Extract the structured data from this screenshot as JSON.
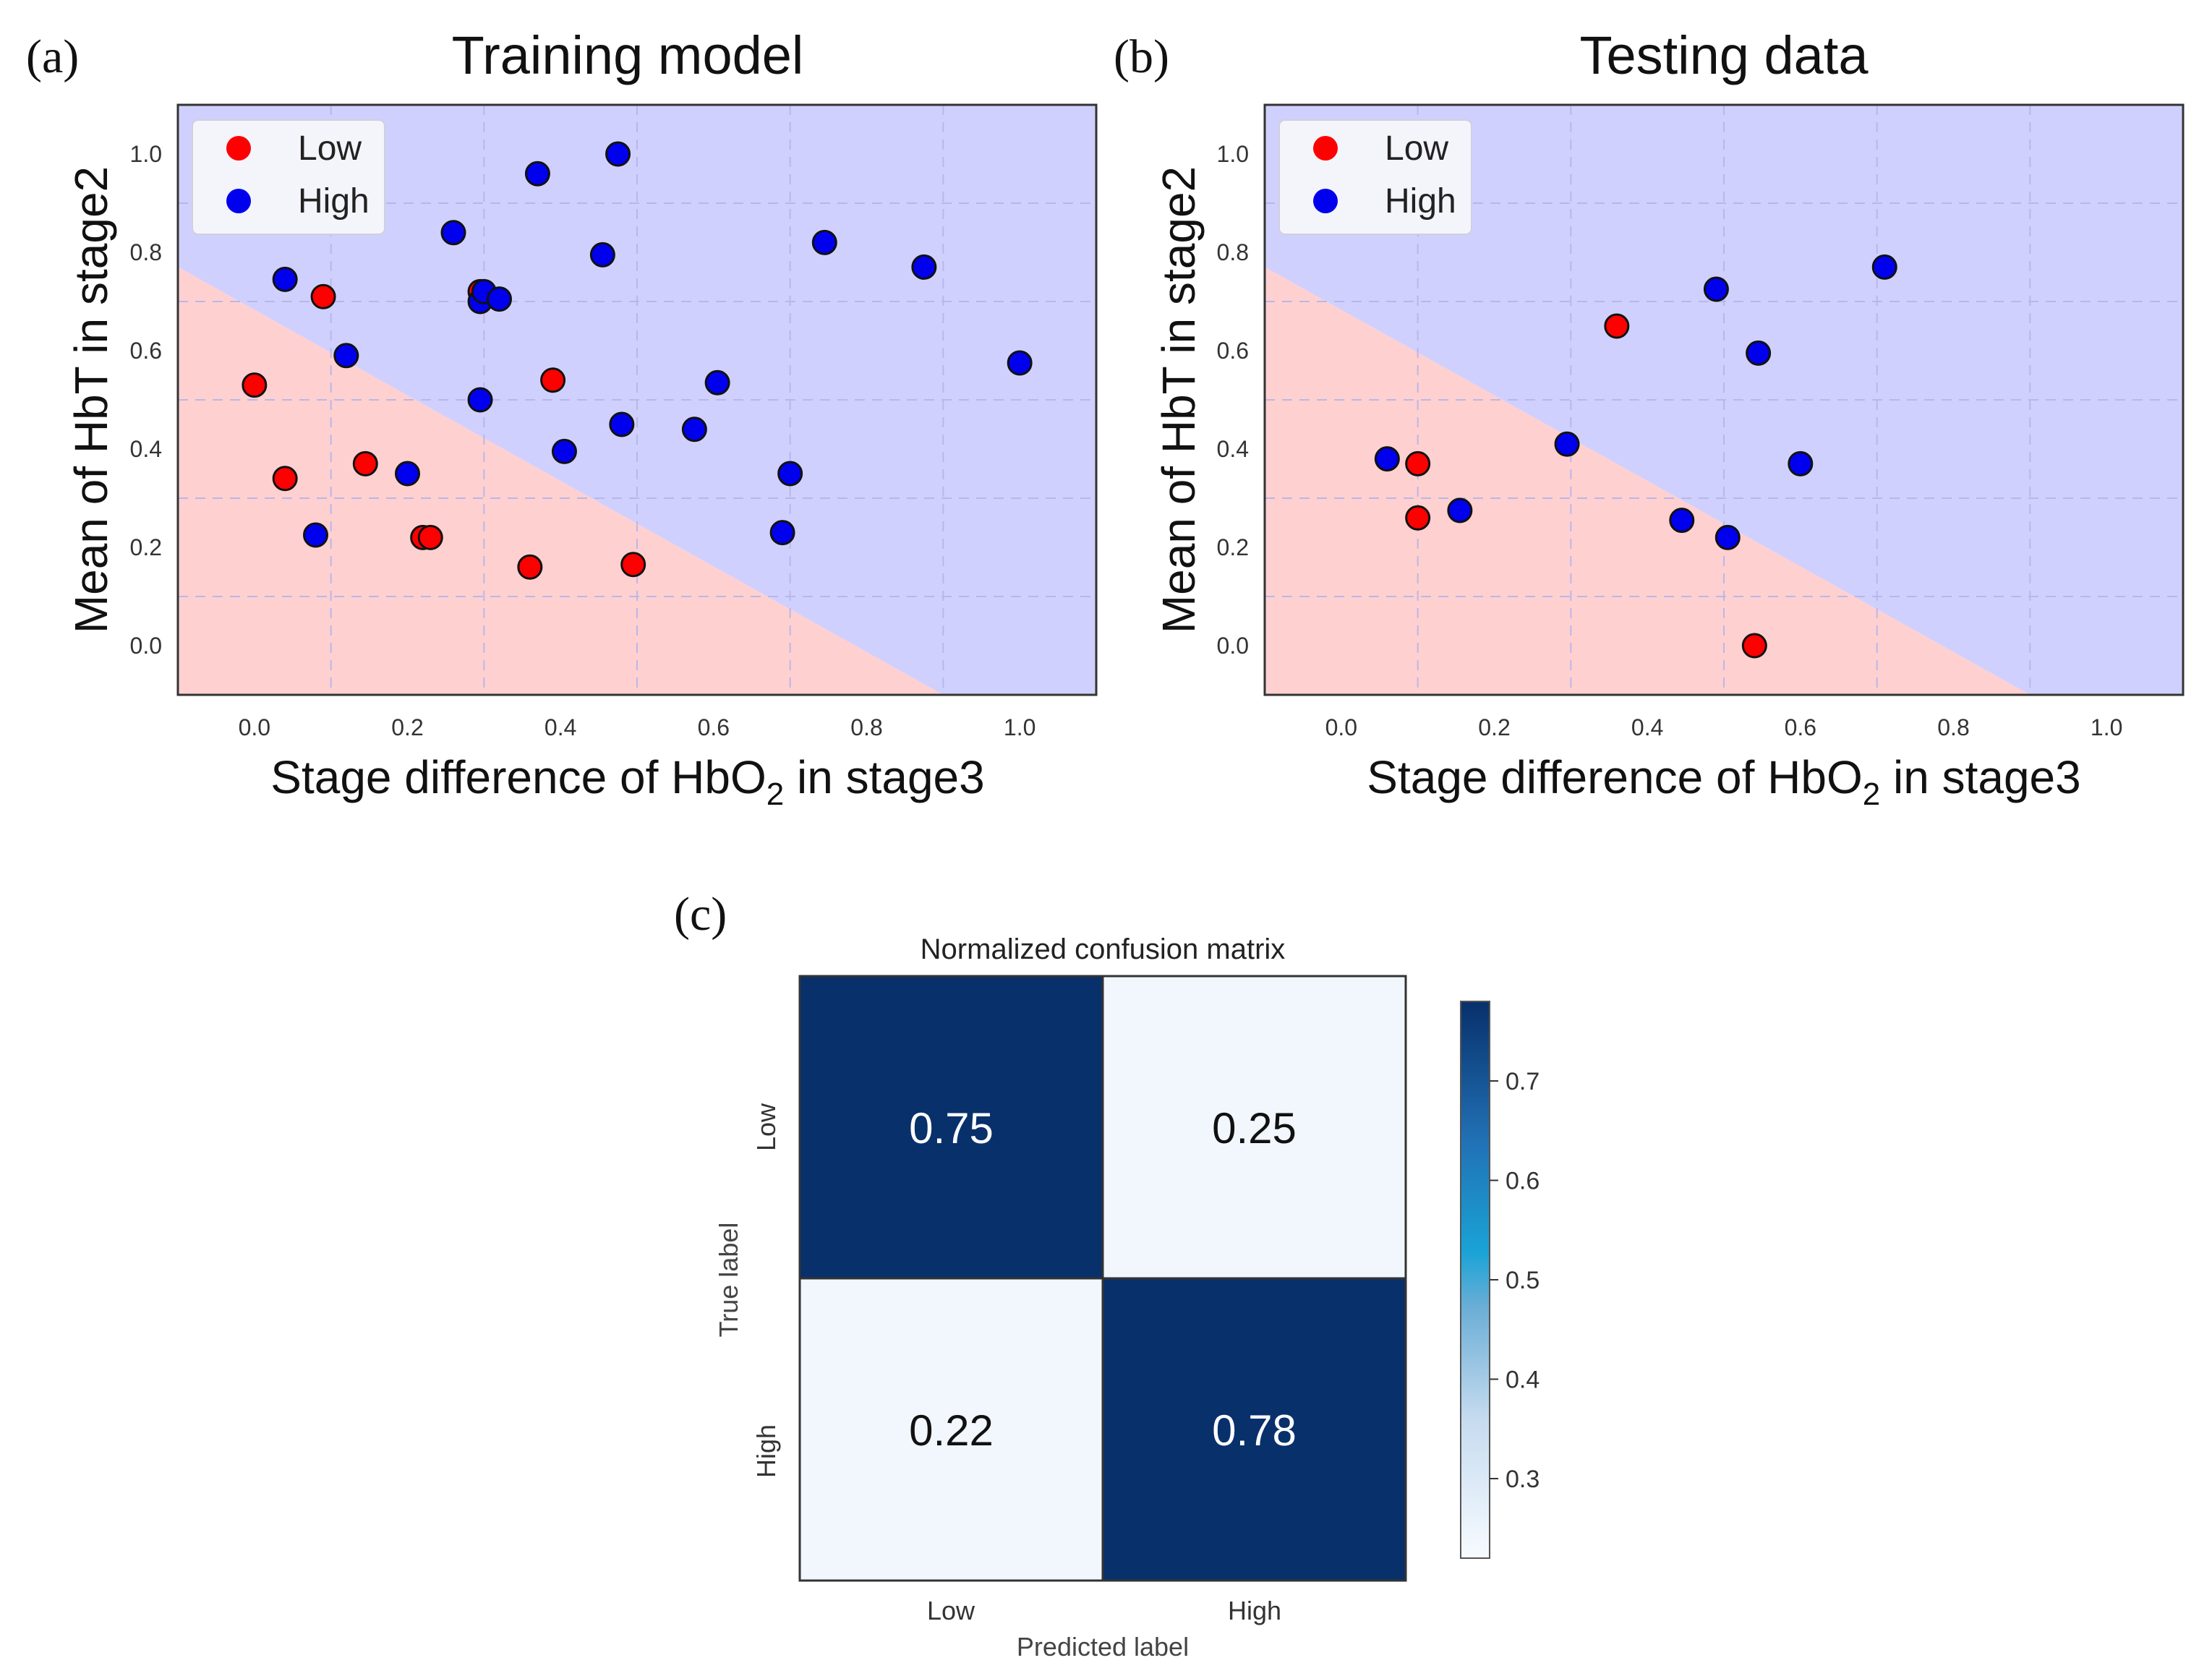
{
  "panels": [
    {
      "label": "(a)",
      "title": "Training model",
      "xlabel_main": "Stage difference of HbO",
      "xlabel_sub": "2",
      "xlabel_tail": " in stage3",
      "ylabel": "Mean of HbT in stage2"
    },
    {
      "label": "(b)",
      "title": "Testing data",
      "xlabel_main": "Stage difference of HbO",
      "xlabel_sub": "2",
      "xlabel_tail": " in stage3",
      "ylabel": "Mean of HbT in stage2"
    }
  ],
  "matrix_panel": {
    "label": "(c)"
  },
  "colors": {
    "low": "#ff0000",
    "high": "#0000ee",
    "region_low": "#ffd0d0",
    "region_high": "#d0d0ff",
    "cm_dark": "#08306b",
    "cm_light": "#f2f7fd"
  },
  "chart_data": [
    {
      "type": "scatter",
      "title": "Training model",
      "xlabel": "Stage difference of HbO2 in stage3",
      "ylabel": "Mean of HbT in stage2",
      "xlim": [
        -0.1,
        1.1
      ],
      "ylim": [
        -0.1,
        1.1
      ],
      "xticks": [
        "0.0",
        "0.2",
        "0.4",
        "0.6",
        "0.8",
        "1.0"
      ],
      "yticks": [
        "0.0",
        "0.2",
        "0.4",
        "0.6",
        "0.8",
        "1.0"
      ],
      "decision_boundary": [
        [
          -0.1,
          0.77
        ],
        [
          0.9,
          -0.1
        ]
      ],
      "legend": [
        "Low",
        "High"
      ],
      "legend_position": "top-left",
      "series": [
        {
          "name": "Low",
          "points": [
            [
              0.0,
              0.53
            ],
            [
              0.04,
              0.34
            ],
            [
              0.09,
              0.71
            ],
            [
              0.145,
              0.37
            ],
            [
              0.22,
              0.22
            ],
            [
              0.23,
              0.22
            ],
            [
              0.295,
              0.72
            ],
            [
              0.36,
              0.16
            ],
            [
              0.39,
              0.54
            ],
            [
              0.495,
              0.165
            ]
          ]
        },
        {
          "name": "High",
          "points": [
            [
              0.04,
              0.745
            ],
            [
              0.08,
              0.225
            ],
            [
              0.12,
              0.59
            ],
            [
              0.2,
              0.35
            ],
            [
              0.26,
              0.84
            ],
            [
              0.295,
              0.5
            ],
            [
              0.295,
              0.7
            ],
            [
              0.3,
              0.72
            ],
            [
              0.32,
              0.705
            ],
            [
              0.37,
              0.96
            ],
            [
              0.405,
              0.395
            ],
            [
              0.455,
              0.795
            ],
            [
              0.475,
              1.0
            ],
            [
              0.48,
              0.45
            ],
            [
              0.575,
              0.44
            ],
            [
              0.605,
              0.535
            ],
            [
              0.69,
              0.23
            ],
            [
              0.7,
              0.35
            ],
            [
              0.745,
              0.82
            ],
            [
              0.875,
              0.77
            ],
            [
              1.0,
              0.575
            ]
          ]
        }
      ]
    },
    {
      "type": "scatter",
      "title": "Testing data",
      "xlabel": "Stage difference of HbO2 in stage3",
      "ylabel": "Mean of HbT in stage2",
      "xlim": [
        -0.1,
        1.1
      ],
      "ylim": [
        -0.1,
        1.1
      ],
      "xticks": [
        "0.0",
        "0.2",
        "0.4",
        "0.6",
        "0.8",
        "1.0"
      ],
      "yticks": [
        "0.0",
        "0.2",
        "0.4",
        "0.6",
        "0.8",
        "1.0"
      ],
      "decision_boundary": [
        [
          -0.1,
          0.77
        ],
        [
          0.9,
          -0.1
        ]
      ],
      "legend": [
        "Low",
        "High"
      ],
      "legend_position": "top-left",
      "series": [
        {
          "name": "Low",
          "points": [
            [
              0.1,
              0.37
            ],
            [
              0.1,
              0.26
            ],
            [
              0.36,
              0.65
            ],
            [
              0.54,
              0.0
            ]
          ]
        },
        {
          "name": "High",
          "points": [
            [
              0.06,
              0.38
            ],
            [
              0.155,
              0.275
            ],
            [
              0.295,
              0.41
            ],
            [
              0.445,
              0.255
            ],
            [
              0.49,
              0.725
            ],
            [
              0.505,
              0.22
            ],
            [
              0.545,
              0.595
            ],
            [
              0.6,
              0.37
            ],
            [
              0.71,
              0.77
            ]
          ]
        }
      ]
    },
    {
      "type": "heatmap",
      "title": "Normalized confusion matrix",
      "xlabel": "Predicted label",
      "ylabel": "True label",
      "x_categories": [
        "Low",
        "High"
      ],
      "y_categories": [
        "Low",
        "High"
      ],
      "values": [
        [
          0.75,
          0.25
        ],
        [
          0.22,
          0.78
        ]
      ],
      "cell_labels": [
        [
          "0.75",
          "0.25"
        ],
        [
          "0.22",
          "0.78"
        ]
      ],
      "colorbar_range": [
        0.22,
        0.78
      ],
      "colorbar_ticks": [
        "0.3",
        "0.4",
        "0.5",
        "0.6",
        "0.7"
      ]
    }
  ]
}
